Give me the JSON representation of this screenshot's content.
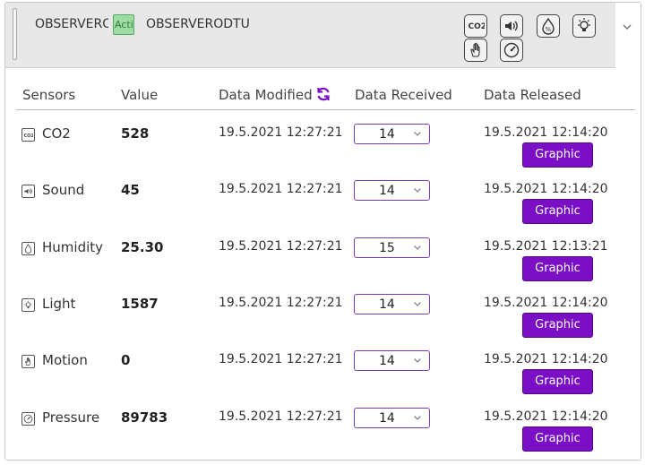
{
  "header": {
    "device_name_truncated": "OBSERVERO",
    "status_badge": "Active",
    "device_name": "OBSERVERODTU",
    "icons": [
      "co2-icon",
      "sound-icon",
      "humidity-icon",
      "light-icon",
      "motion-icon",
      "pressure-icon"
    ],
    "co2_icon_text": "CO2",
    "humidity_icon_text": "%"
  },
  "table": {
    "columns": {
      "sensors": "Sensors",
      "value": "Value",
      "modified": "Data Modified",
      "received": "Data Received",
      "released": "Data Released"
    },
    "rows": [
      {
        "sensor": "CO2",
        "icon": "co2-icon",
        "value": "528",
        "modified": "19.5.2021 12:27:21",
        "received": "14",
        "released": "19.5.2021 12:14:20",
        "button": "Graphic"
      },
      {
        "sensor": "Sound",
        "icon": "sound-icon",
        "value": "45",
        "modified": "19.5.2021 12:27:21",
        "received": "14",
        "released": "19.5.2021 12:14:20",
        "button": "Graphic"
      },
      {
        "sensor": "Humidity",
        "icon": "humidity-icon",
        "value": "25.30",
        "modified": "19.5.2021 12:27:21",
        "received": "15",
        "released": "19.5.2021 12:13:21",
        "button": "Graphic"
      },
      {
        "sensor": "Light",
        "icon": "light-icon",
        "value": "1587",
        "modified": "19.5.2021 12:27:21",
        "received": "14",
        "released": "19.5.2021 12:14:20",
        "button": "Graphic"
      },
      {
        "sensor": "Motion",
        "icon": "motion-icon",
        "value": "0",
        "modified": "19.5.2021 12:27:21",
        "received": "14",
        "released": "19.5.2021 12:14:20",
        "button": "Graphic"
      },
      {
        "sensor": "Pressure",
        "icon": "pressure-icon",
        "value": "89783",
        "modified": "19.5.2021 12:27:21",
        "received": "14",
        "released": "19.5.2021 12:14:20",
        "button": "Graphic"
      }
    ]
  },
  "colors": {
    "accent": "#7b0fc6",
    "badge_bg": "#9fdca5",
    "header_bg": "#e8e8e8"
  }
}
